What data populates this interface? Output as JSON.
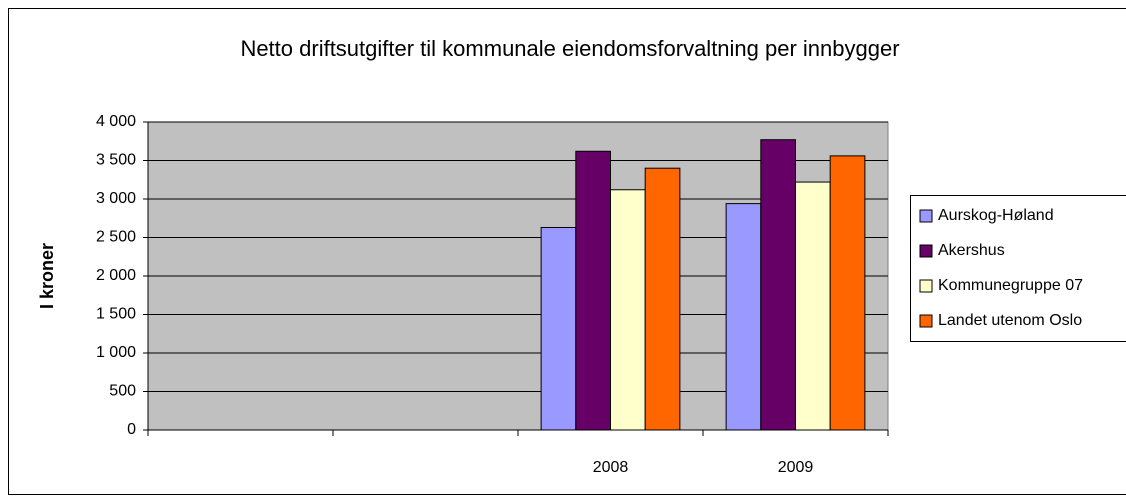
{
  "chart_data": {
    "type": "bar",
    "title": "Netto driftsutgifter til kommunale eiendomsforvaltning per innbygger",
    "y_label": "I kroner",
    "categories": [
      null,
      null,
      "2008",
      "2009"
    ],
    "series": [
      {
        "name": "Aurskog-Høland",
        "color": "#9999ff",
        "values": [
          null,
          null,
          2630,
          2940
        ]
      },
      {
        "name": "Akershus",
        "color": "#660066",
        "values": [
          null,
          null,
          3620,
          3770
        ]
      },
      {
        "name": "Kommunegruppe 07",
        "color": "#ffffcc",
        "values": [
          null,
          null,
          3120,
          3220
        ]
      },
      {
        "name": "Landet utenom Oslo",
        "color": "#ff6600",
        "values": [
          null,
          null,
          3400,
          3560
        ]
      }
    ],
    "ylim": [
      0,
      4000
    ],
    "yticks": [
      0,
      500,
      {
        "value": 1000,
        "label": "1 000"
      },
      {
        "value": 1500,
        "label": "1 500"
      },
      {
        "value": 2000,
        "label": "2 000"
      },
      {
        "value": 2500,
        "label": "2 500"
      },
      {
        "value": 3000,
        "label": "3 000"
      },
      {
        "value": 3500,
        "label": "3 500"
      },
      {
        "value": 4000,
        "label": "4 000"
      }
    ],
    "grid": true,
    "legend": "right"
  }
}
